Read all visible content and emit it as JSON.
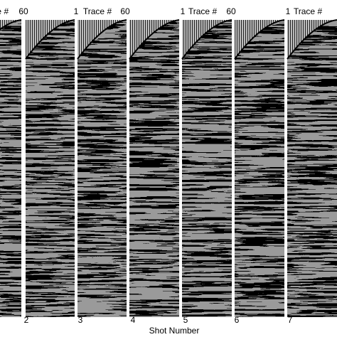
{
  "header_labels": [
    "Trace #",
    "60",
    "1",
    "Trace #",
    "60",
    "1",
    "Trace #",
    "60",
    "1",
    "Trace #"
  ],
  "shot_numbers": [
    "2",
    "3",
    "4",
    "5",
    "6",
    "7"
  ],
  "x_axis_label": "Shot Number"
}
